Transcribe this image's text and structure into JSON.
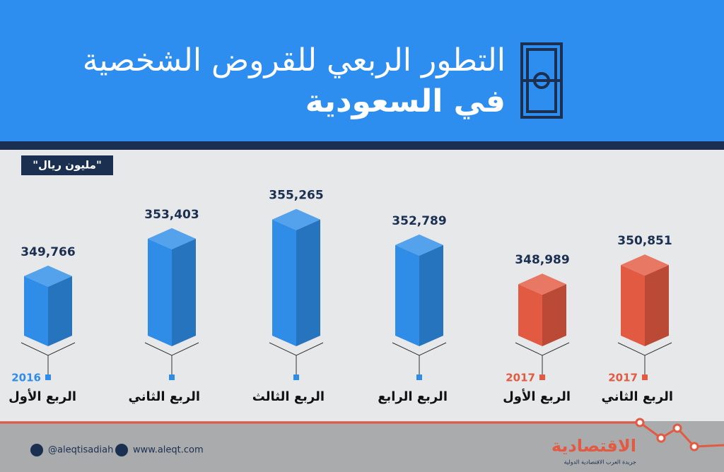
{
  "header": {
    "title": "التطور الربعي للقروض الشخصية",
    "subtitle": "في السعودية"
  },
  "chart_data": {
    "type": "bar3d",
    "unit": "\"مليون ريال\"",
    "categories": [
      "الربع الأول",
      "الربع الثاني",
      "الربع الثالث",
      "الربع الرابع",
      "الربع الأول",
      "الربع الثاني"
    ],
    "years": [
      "2016",
      null,
      null,
      null,
      "2017",
      "2017"
    ],
    "values": [
      349766,
      353403,
      355265,
      352789,
      348989,
      350851
    ],
    "value_labels": [
      "349,766",
      "353,403",
      "355,265",
      "352,789",
      "348,989",
      "350,851"
    ],
    "colors": [
      "#2f8de8",
      "#2f8de8",
      "#2f8de8",
      "#2f8de8",
      "#e35a42",
      "#e35a42"
    ],
    "ylim": [
      344000,
      356000
    ]
  },
  "footer": {
    "twitter": "@aleqtisadiah",
    "website": "www.aleqt.com",
    "logo": "الاقتصادية",
    "logo_sub": "جريدة العرب الاقتصادية الدولية"
  }
}
